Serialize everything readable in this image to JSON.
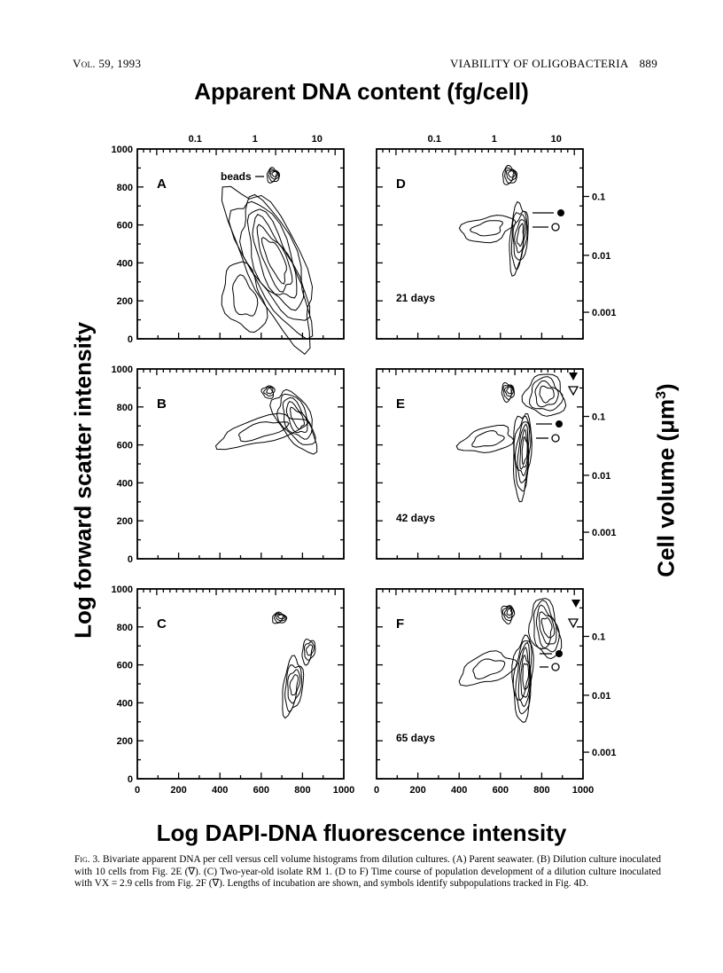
{
  "header": {
    "volume": "Vol. 59, 1993",
    "running_title": "VIABILITY OF OLIGOBACTERIA",
    "page_number": "889"
  },
  "figure": {
    "top_axis_title": "Apparent DNA content (fg/cell)",
    "bottom_axis_title": "Log DAPI-DNA fluorescence intensity",
    "left_axis_title": "Log forward scatter intensity",
    "right_axis_title": "Cell volume (μm³)",
    "top_ticks": [
      "0.1",
      "1",
      "10"
    ],
    "left_ticks": [
      "0",
      "200",
      "400",
      "600",
      "800",
      "1000"
    ],
    "bottom_ticks": [
      "0",
      "200",
      "400",
      "600",
      "800",
      "1000"
    ],
    "right_ticks": [
      "0.1",
      "0.01",
      "0.001"
    ],
    "panels": [
      {
        "letter": "A",
        "note": "beads",
        "days": ""
      },
      {
        "letter": "B",
        "note": "",
        "days": ""
      },
      {
        "letter": "C",
        "note": "",
        "days": ""
      },
      {
        "letter": "D",
        "note": "",
        "days": "21 days"
      },
      {
        "letter": "E",
        "note": "",
        "days": "42 days"
      },
      {
        "letter": "F",
        "note": "",
        "days": "65 days"
      }
    ]
  },
  "caption": {
    "label": "Fig. 3.",
    "text": "Bivariate apparent DNA per cell versus cell volume histograms from dilution cultures. (A) Parent seawater. (B) Dilution culture inoculated with 10 cells from Fig. 2E (∇). (C) Two-year-old isolate RM 1. (D to F) Time course of population development of a dilution culture inoculated with VX = 2.9 cells from Fig. 2F (∇). Lengths of incubation are shown, and symbols identify subpopulations tracked in Fig. 4D."
  },
  "colors": {
    "ink": "#000000",
    "paper": "#ffffff"
  }
}
